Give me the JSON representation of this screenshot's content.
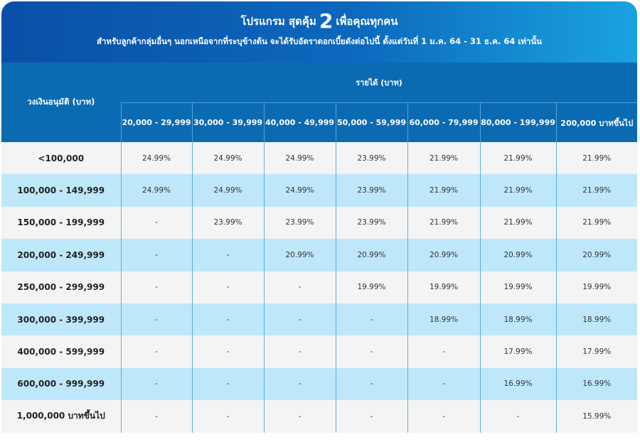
{
  "header": {
    "title_start": "โปรแกรม สุดคุ้ม",
    "title_number": "2",
    "title_end": "เพื่อคุณทุกคน",
    "subtitle": "สำหรับลูกค้ากลุ่มอื่นๆ นอกเหนือจากที่ระบุข้างต้น จะได้รับอัตราดอกเบี้ยดังต่อไปนี้ ตั้งแต่วันที่ 1 ม.ค. 64 - 31 ธ.ค. 64 เท่านั้น"
  },
  "table": {
    "corner": "วงเงินอนุมัติ (บาท)",
    "group": "รายได้ (บาท)",
    "columns": [
      "20,000 - 29,999",
      "30,000 - 39,999",
      "40,000 - 49,999",
      "50,000 - 59,999",
      "60,000 - 79,999",
      "80,000 - 199,999",
      "200,000 บาทขึ้นไป"
    ],
    "rows": [
      {
        "label": "<100,000",
        "cells": [
          "24.99%",
          "24.99%",
          "24.99%",
          "23.99%",
          "21.99%",
          "21.99%",
          "21.99%"
        ]
      },
      {
        "label": "100,000 - 149,999",
        "cells": [
          "24.99%",
          "24.99%",
          "24.99%",
          "23.99%",
          "21.99%",
          "21.99%",
          "21.99%"
        ]
      },
      {
        "label": "150,000 - 199,999",
        "cells": [
          "-",
          "23.99%",
          "23.99%",
          "23.99%",
          "21.99%",
          "21.99%",
          "21.99%"
        ]
      },
      {
        "label": "200,000 - 249,999",
        "cells": [
          "-",
          "-",
          "20.99%",
          "20.99%",
          "20.99%",
          "20.99%",
          "20.99%"
        ]
      },
      {
        "label": "250,000 - 299,999",
        "cells": [
          "-",
          "-",
          "-",
          "19.99%",
          "19.99%",
          "19.99%",
          "19.99%"
        ]
      },
      {
        "label": "300,000 - 399,999",
        "cells": [
          "-",
          "-",
          "-",
          "-",
          "18.99%",
          "18.99%",
          "18.99%"
        ]
      },
      {
        "label": "400,000 - 599,999",
        "cells": [
          "-",
          "-",
          "-",
          "-",
          "-",
          "17.99%",
          "17.99%"
        ]
      },
      {
        "label": "600,000 - 999,999",
        "cells": [
          "-",
          "-",
          "-",
          "-",
          "-",
          "16.99%",
          "16.99%"
        ]
      },
      {
        "label": "1,000,000 บาทขึ้นไป",
        "cells": [
          "-",
          "-",
          "-",
          "-",
          "-",
          "-",
          "15.99%"
        ]
      }
    ]
  }
}
